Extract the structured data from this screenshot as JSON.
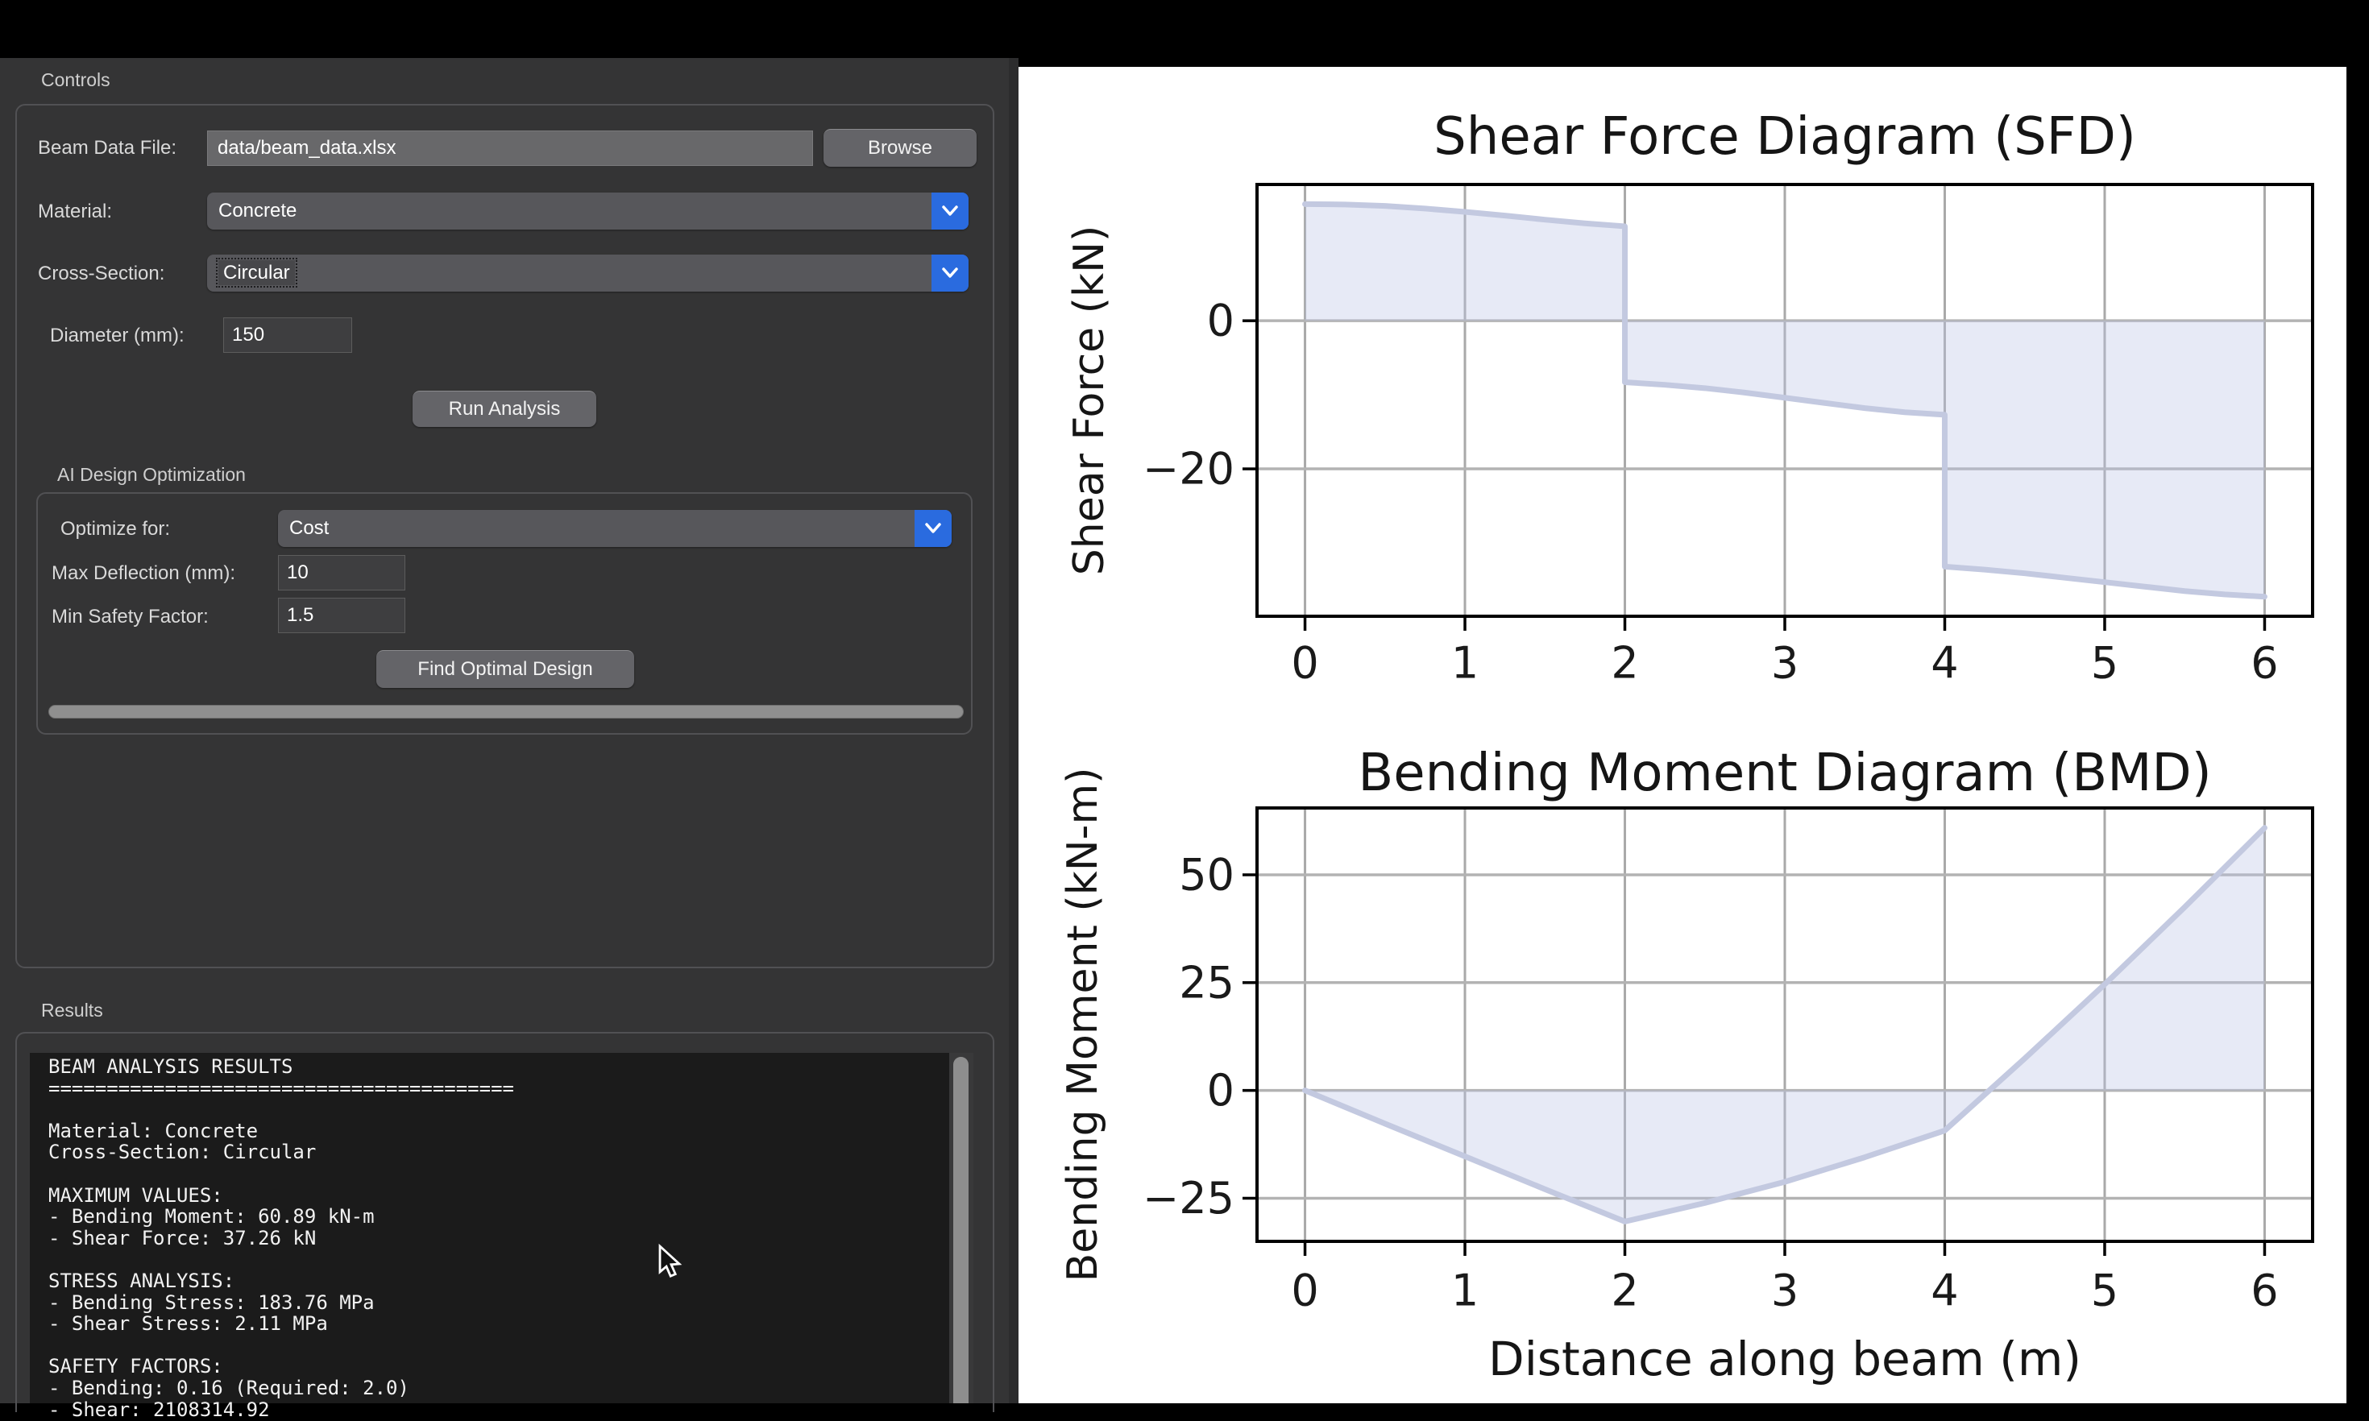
{
  "window": {
    "controls_title": "Controls",
    "results_title": "Results"
  },
  "controls": {
    "beam_data_file": {
      "label": "Beam Data File:",
      "value": "data/beam_data.xlsx",
      "browse_label": "Browse"
    },
    "material": {
      "label": "Material:",
      "value": "Concrete"
    },
    "cross_section": {
      "label": "Cross-Section:",
      "value": "Circular"
    },
    "diameter": {
      "label": "Diameter (mm):",
      "value": "150"
    },
    "run_analysis_label": "Run Analysis"
  },
  "ai_optimization": {
    "title": "AI Design Optimization",
    "optimize_for": {
      "label": "Optimize for:",
      "value": "Cost"
    },
    "max_deflection": {
      "label": "Max Deflection (mm):",
      "value": "10"
    },
    "min_safety_factor": {
      "label": "Min Safety Factor:",
      "value": "1.5"
    },
    "find_optimal_label": "Find Optimal Design"
  },
  "results": {
    "lines": [
      "BEAM ANALYSIS RESULTS",
      "========================================",
      "",
      "Material: Concrete",
      "Cross-Section: Circular",
      "",
      "MAXIMUM VALUES:",
      "- Bending Moment: 60.89 kN-m",
      "- Shear Force: 37.26 kN",
      "",
      "STRESS ANALYSIS:",
      "- Bending Stress: 183.76 MPa",
      "- Shear Stress: 2.11 MPa",
      "",
      "SAFETY FACTORS:",
      "- Bending: 0.16 (Required: 2.0)",
      "- Shear: 2108314.92"
    ]
  },
  "colors": {
    "accent_blue": "#2a6bdf",
    "panel_bg": "#343435",
    "top_bar": "#000000",
    "chart_line": "#c3c9e0",
    "chart_fill": "rgba(185,196,228,0.35)",
    "grid_gray": "#adadad"
  },
  "chart_data": [
    {
      "type": "area",
      "title": "Shear Force Diagram (SFD)",
      "xlabel": "",
      "ylabel": "Shear Force (kN)",
      "x": [
        0,
        0.25,
        0.5,
        0.75,
        1,
        1.25,
        1.5,
        1.75,
        2,
        2,
        2.25,
        2.5,
        2.75,
        3,
        3.25,
        3.5,
        3.75,
        4,
        4,
        4.25,
        4.5,
        4.75,
        5,
        5.25,
        5.5,
        5.75,
        6
      ],
      "y": [
        15.75,
        15.7,
        15.5,
        15.15,
        14.7,
        14.2,
        13.65,
        13.15,
        12.75,
        -8.3,
        -8.65,
        -9.1,
        -9.7,
        -10.4,
        -11.1,
        -11.8,
        -12.35,
        -12.7,
        -33.2,
        -33.6,
        -34.1,
        -34.7,
        -35.3,
        -35.9,
        -36.5,
        -36.95,
        -37.26
      ],
      "xlim": [
        -0.3,
        6.3
      ],
      "ylim": [
        -39.9,
        18.4
      ],
      "xticks": [
        0,
        1,
        2,
        3,
        4,
        5,
        6
      ],
      "yticks": [
        0,
        -20
      ],
      "grid": true,
      "fill_to_zero": true
    },
    {
      "type": "area",
      "title": "Bending Moment Diagram (BMD)",
      "xlabel": "Distance along beam (m)",
      "ylabel": "Bending Moment (kN-m)",
      "x": [
        0,
        0.5,
        1,
        1.5,
        2,
        2.5,
        3,
        3.5,
        4,
        4.5,
        5,
        5.5,
        6
      ],
      "y": [
        0,
        -7.7,
        -15.3,
        -22.9,
        -30.4,
        -26.1,
        -21.2,
        -15.5,
        -9.3,
        7.4,
        24.6,
        42.5,
        60.89
      ],
      "xlim": [
        -0.3,
        6.3
      ],
      "ylim": [
        -35.0,
        65.5
      ],
      "xticks": [
        0,
        1,
        2,
        3,
        4,
        5,
        6
      ],
      "yticks": [
        50,
        25,
        0,
        -25
      ],
      "grid": true,
      "fill_to_zero": true
    }
  ]
}
